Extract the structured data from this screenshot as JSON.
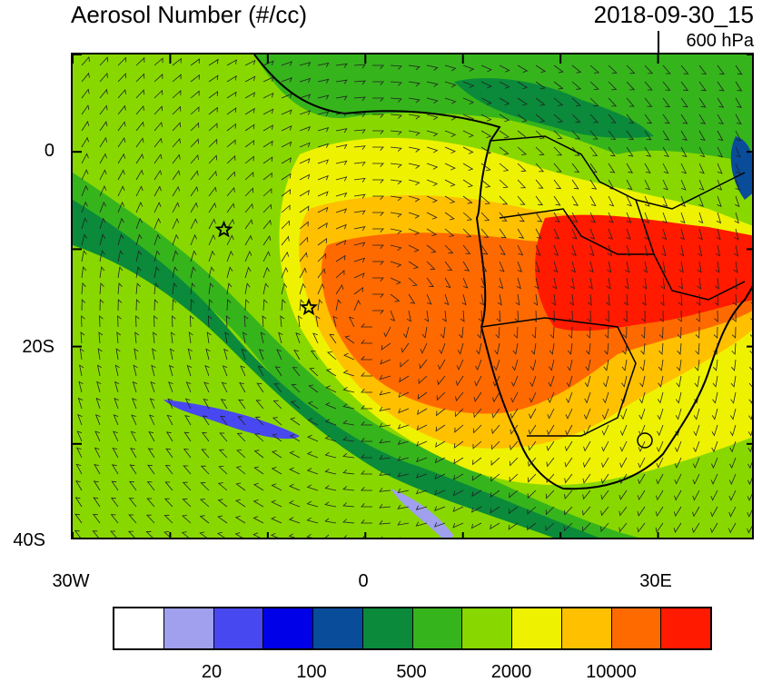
{
  "header": {
    "title": "Aerosol Number (#/cc)",
    "datetime": "2018-09-30_15",
    "level": "600 hPa"
  },
  "map": {
    "lat_labels": [
      "0",
      "20S",
      "40S"
    ],
    "lon_labels": [
      "30W",
      "0",
      "30E"
    ],
    "lon_range": [
      -30,
      40
    ],
    "lat_range": [
      -40,
      10
    ],
    "markers": [
      {
        "name": "star-marker-1",
        "lon": -14.5,
        "lat": -8
      },
      {
        "name": "star-marker-2",
        "lon": -5.8,
        "lat": -16
      }
    ],
    "colors": {
      "high_plume": "#ff1a00",
      "plume_orange": "#ff6a00",
      "plume_amber": "#ffc000",
      "yellow": "#eef200",
      "light_green": "#88d800",
      "mid_green": "#36b41c",
      "dark_green": "#0a8a3a",
      "navy": "#084c9a",
      "low_blue": "#a0a0ee"
    }
  },
  "colorbar": {
    "colors": [
      "#ffffff",
      "#a0a0ee",
      "#4848f0",
      "#0000e8",
      "#084c9a",
      "#0a8a3a",
      "#36b41c",
      "#88d800",
      "#eef200",
      "#ffc000",
      "#ff6a00",
      "#ff1a00"
    ],
    "labels": [
      "20",
      "100",
      "500",
      "2000",
      "10000"
    ]
  }
}
